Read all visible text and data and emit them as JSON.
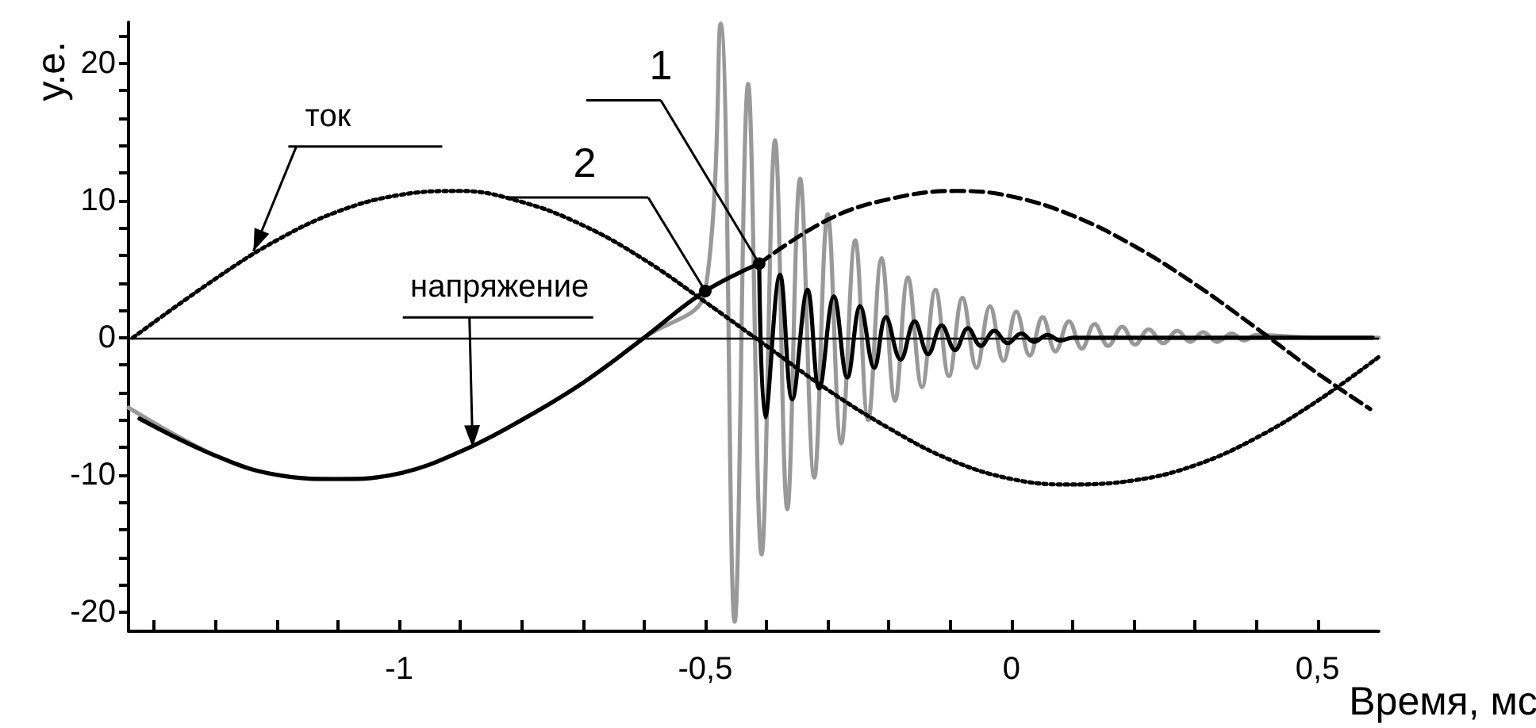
{
  "chart_data": {
    "type": "line",
    "xlabel": "Время, мс",
    "ylabel": "у.е.",
    "xlim": [
      -1.442,
      0.6
    ],
    "ylim": [
      -21.4,
      23
    ],
    "xticks": [
      {
        "value": -1.4,
        "label": null
      },
      {
        "value": -1.3,
        "label": null
      },
      {
        "value": -1.2,
        "label": null
      },
      {
        "value": -1.1,
        "label": null
      },
      {
        "value": -1,
        "label": "-1"
      },
      {
        "value": -0.9,
        "label": null
      },
      {
        "value": -0.8,
        "label": null
      },
      {
        "value": -0.7,
        "label": null
      },
      {
        "value": -0.6,
        "label": null
      },
      {
        "value": -0.5,
        "label": "-0,5"
      },
      {
        "value": -0.4,
        "label": null
      },
      {
        "value": -0.3,
        "label": null
      },
      {
        "value": -0.2,
        "label": null
      },
      {
        "value": -0.1,
        "label": null
      },
      {
        "value": 0,
        "label": "0"
      },
      {
        "value": 0.1,
        "label": null
      },
      {
        "value": 0.2,
        "label": null
      },
      {
        "value": 0.3,
        "label": null
      },
      {
        "value": 0.4,
        "label": null
      },
      {
        "value": 0.5,
        "label": "0,5"
      }
    ],
    "yticks": [
      -20,
      {
        "value": -18,
        "label": null
      },
      {
        "value": -16,
        "label": null
      },
      {
        "value": -14,
        "label": null
      },
      {
        "value": -12,
        "label": null
      },
      -10,
      {
        "value": -8,
        "label": null
      },
      {
        "value": -6,
        "label": null
      },
      {
        "value": -4,
        "label": null
      },
      {
        "value": -2,
        "label": null
      },
      0,
      {
        "value": 2,
        "label": null
      },
      {
        "value": 4,
        "label": null
      },
      {
        "value": 6,
        "label": null
      },
      {
        "value": 8,
        "label": null
      },
      10,
      {
        "value": 12,
        "label": null
      },
      {
        "value": 14,
        "label": null
      },
      {
        "value": 16,
        "label": null
      },
      {
        "value": 18,
        "label": null
      },
      20,
      {
        "value": 22,
        "label": null
      }
    ],
    "ref_lines": [
      {
        "axis": "y",
        "value": 0,
        "color": "#000000"
      }
    ],
    "marker": "none",
    "series": [
      {
        "color": "#999999",
        "line_style": "solid",
        "x": [
          -1.442,
          -1.3,
          -1.2,
          -1.1,
          -1.0,
          -0.9,
          -0.8,
          -0.7,
          -0.6,
          -0.5,
          -0.475,
          -0.452,
          -0.43,
          -0.408,
          -0.386,
          -0.366,
          -0.345,
          -0.322,
          -0.3,
          -0.278,
          -0.255,
          -0.234,
          -0.212,
          -0.19,
          -0.169,
          -0.146,
          -0.124,
          -0.102,
          -0.08,
          -0.057,
          -0.035,
          -0.013,
          0.008,
          0.03,
          0.051,
          0.072,
          0.094,
          0.115,
          0.136,
          0.158,
          0.181,
          0.202,
          0.224,
          0.248,
          0.271,
          0.292,
          0.313,
          0.336,
          0.36,
          0.38,
          0.4,
          0.5,
          0.6
        ],
        "values": [
          -5.1,
          -8.6,
          -10,
          -10.3,
          -9.9,
          -8.3,
          -6,
          -3.3,
          0,
          3.4,
          22.9,
          -20.7,
          18.5,
          -15.8,
          14.4,
          -12.5,
          11.6,
          -10.2,
          9,
          -7.7,
          7.1,
          -6,
          5.8,
          -4.6,
          4.4,
          -3.6,
          3.5,
          -2.8,
          2.9,
          -2.2,
          2.3,
          -1.7,
          1.9,
          -1.3,
          1.5,
          -1,
          1.2,
          -0.8,
          1,
          -0.6,
          0.8,
          -0.5,
          0.6,
          -0.4,
          0.5,
          -0.3,
          0.4,
          -0.3,
          0.3,
          -0.2,
          0.2,
          0,
          0
        ]
      },
      {
        "color": "#000000",
        "line_style": "dotted",
        "x": [
          -1.435,
          -1.3,
          -1.2,
          -1.1,
          -1.0,
          -0.9,
          -0.8,
          -0.7,
          -0.6,
          -0.5,
          -0.4,
          -0.3,
          -0.2,
          -0.1,
          0,
          0.09,
          0.2,
          0.3,
          0.4,
          0.5,
          0.6
        ],
        "values": [
          0,
          4.3,
          7.1,
          9.2,
          10.4,
          10.7,
          9.9,
          8.2,
          5.7,
          2.6,
          -0.6,
          -3.8,
          -6.6,
          -8.9,
          -10.3,
          -10.7,
          -10.4,
          -9.3,
          -7.3,
          -4.6,
          -1.4
        ]
      },
      {
        "color": "#000000",
        "line_style": "solid",
        "x": [
          -1.424,
          -1.3,
          -1.2,
          -1.1,
          -1.0,
          -0.9,
          -0.8,
          -0.7,
          -0.6,
          -0.5,
          -0.412
        ],
        "values": [
          -5.9,
          -8.6,
          -10,
          -10.3,
          -9.9,
          -8.3,
          -6,
          -3.3,
          0,
          3.4,
          5.4
        ]
      },
      {
        "color": "#000000",
        "line_style": "dashed",
        "x": [
          -0.412,
          -0.3,
          -0.2,
          -0.09,
          0,
          0.1,
          0.2,
          0.3,
          0.4,
          0.5,
          0.586
        ],
        "values": [
          5.4,
          8.6,
          10.1,
          10.7,
          10.3,
          8.9,
          6.7,
          3.9,
          0.7,
          -2.6,
          -5.2
        ]
      },
      {
        "color": "#000000",
        "line_style": "solid",
        "x": [
          -0.412,
          -0.402,
          -0.378,
          -0.358,
          -0.333,
          -0.314,
          -0.29,
          -0.268,
          -0.247,
          -0.224,
          -0.205,
          -0.181,
          -0.158,
          -0.136,
          -0.114,
          -0.092,
          -0.071,
          -0.05,
          -0.028,
          -0.006,
          0.016,
          0.037,
          0.059,
          0.08,
          0.1,
          0.59
        ],
        "values": [
          5.4,
          -5.8,
          4.6,
          -4.5,
          3.5,
          -3.7,
          3,
          -2.9,
          2.3,
          -2.2,
          1.5,
          -1.6,
          1.2,
          -1.2,
          0.9,
          -0.9,
          0.7,
          -0.6,
          0.5,
          -0.4,
          0.3,
          -0.3,
          0.2,
          -0.2,
          0,
          0
        ]
      }
    ],
    "annotations": [
      {
        "text": "ток",
        "x": -1.238,
        "y": 6.3
      },
      {
        "text": "напряжение",
        "x": -0.88,
        "y": -8.0
      },
      {
        "text": "1",
        "x": -0.412,
        "y": 5.4
      },
      {
        "text": "2",
        "x": -0.5,
        "y": 3.4
      }
    ]
  }
}
